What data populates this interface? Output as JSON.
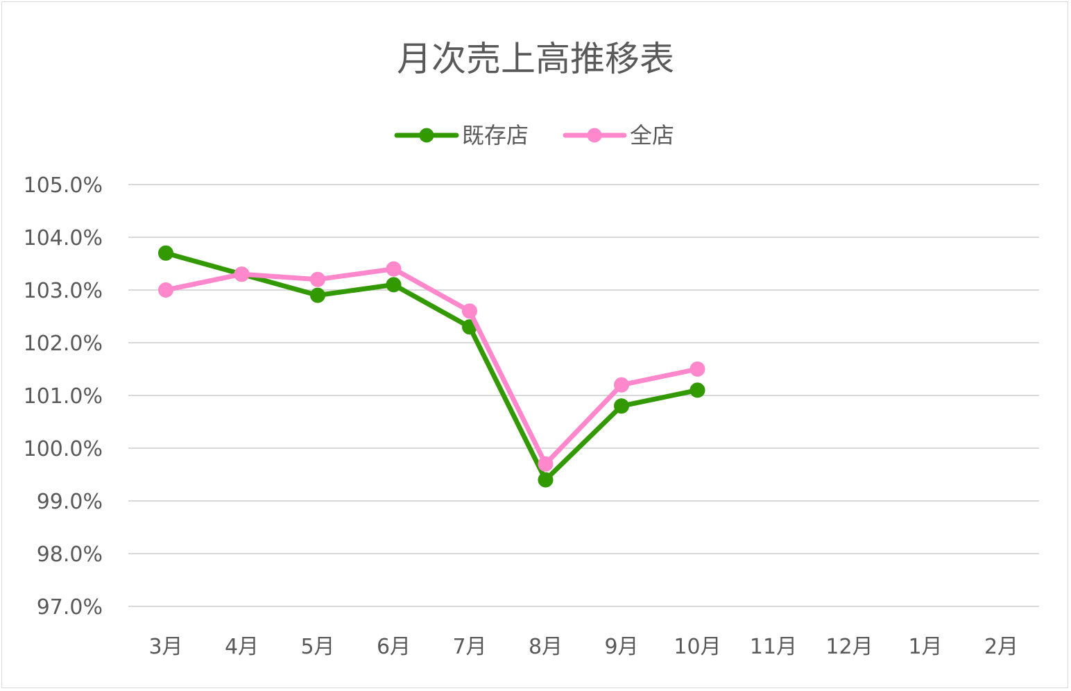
{
  "chart_data": {
    "type": "line",
    "title": "月次売上高推移表",
    "xlabel": "",
    "ylabel": "",
    "categories": [
      "3月",
      "4月",
      "5月",
      "6月",
      "7月",
      "8月",
      "9月",
      "10月",
      "11月",
      "12月",
      "1月",
      "2月"
    ],
    "ylim": [
      97.0,
      105.0
    ],
    "ytick_step": 1.0,
    "ytick_format": "percent_1dp",
    "grid": "horizontal",
    "legend_position": "top",
    "series": [
      {
        "name": "既存店",
        "color": "#339900",
        "values": [
          103.7,
          103.3,
          102.9,
          103.1,
          102.3,
          99.4,
          100.8,
          101.1,
          null,
          null,
          null,
          null
        ]
      },
      {
        "name": "全店",
        "color": "#ff88cc",
        "values": [
          103.0,
          103.3,
          103.2,
          103.4,
          102.6,
          99.7,
          101.2,
          101.5,
          null,
          null,
          null,
          null
        ]
      }
    ]
  }
}
